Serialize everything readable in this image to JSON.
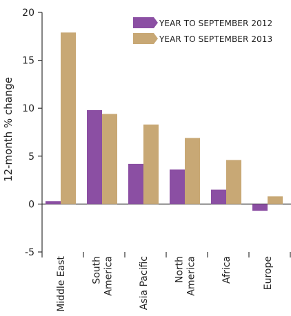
{
  "chart_data": {
    "type": "bar",
    "title": "",
    "xlabel": "",
    "ylabel": "12-month % change",
    "ylim": [
      -5,
      20
    ],
    "yticks": [
      -5,
      0,
      5,
      10,
      15,
      20
    ],
    "grid": false,
    "legend_position": "top-right",
    "categories": [
      [
        "Middle East"
      ],
      [
        "South",
        "America"
      ],
      [
        "Asia Pacific"
      ],
      [
        "North",
        "America"
      ],
      [
        "Africa"
      ],
      [
        "Europe"
      ]
    ],
    "series": [
      {
        "name": "YEAR TO SEPTEMBER 2012",
        "color": "#8B4FA3",
        "values": [
          0.3,
          9.8,
          4.2,
          3.6,
          1.5,
          -0.7
        ]
      },
      {
        "name": "YEAR TO SEPTEMBER 2013",
        "color": "#C8A875",
        "values": [
          17.9,
          9.4,
          8.3,
          6.9,
          4.6,
          0.8
        ]
      }
    ]
  }
}
